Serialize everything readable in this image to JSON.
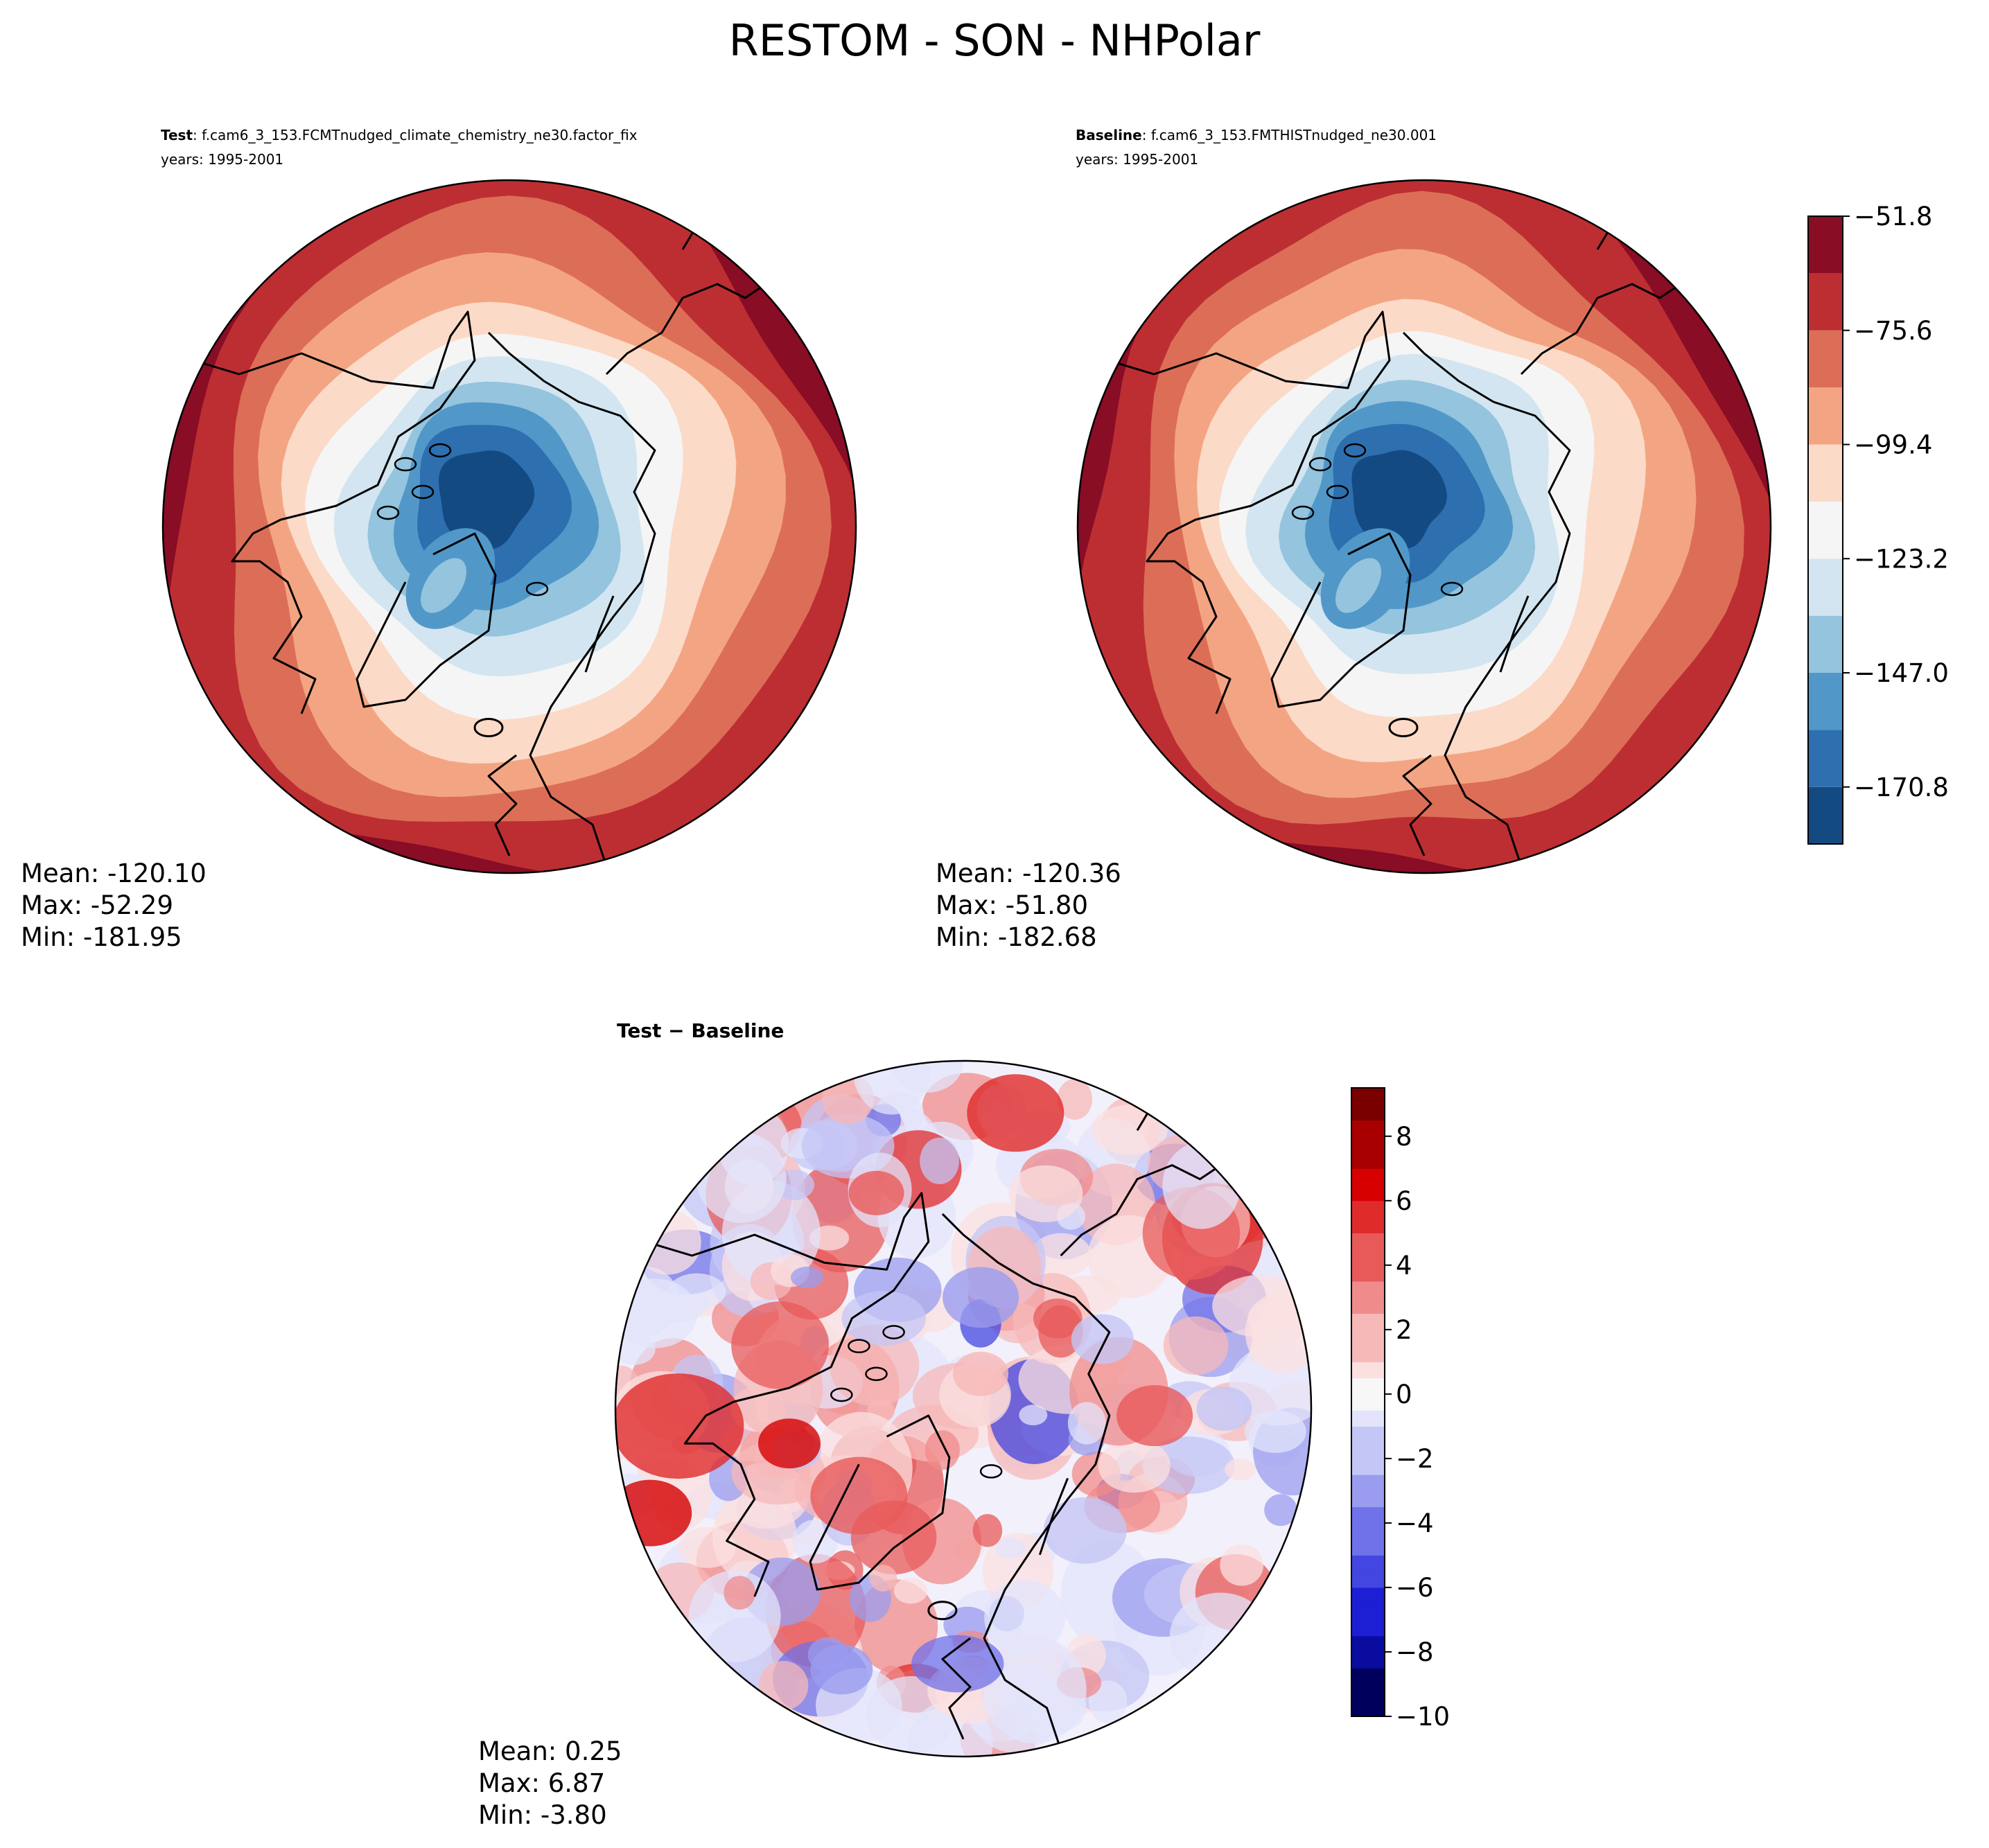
{
  "title": "RESTOM - SON - NHPolar",
  "colors": {
    "levels": [
      "#144a82",
      "#2e6fb0",
      "#5198c8",
      "#94c4de",
      "#d2e5f0",
      "#f5f5f5",
      "#fcdac8",
      "#f3a583",
      "#dc6e57",
      "#bd2e32",
      "#880d25"
    ],
    "diff_pos": [
      "#fbe0e0",
      "#f7b8b8",
      "#f08b8b",
      "#e85a5a",
      "#e02b2b",
      "#d60000",
      "#a80000",
      "#7a0000"
    ],
    "diff_neg": [
      "#e3e4fb",
      "#c4c6f5",
      "#9a9cef",
      "#6f72e8",
      "#4346e0",
      "#1c1fd4",
      "#0a0ca0",
      "#00005c"
    ],
    "coast": "#000000"
  },
  "chart_data": [
    {
      "type": "heatmap",
      "subtitle_bold": "Test",
      "subtitle_rest": ": f.cam6_3_153.FCMTnudged_climate_chemistry_ne30.factor_fix",
      "years": "years: 1995-2001",
      "stats": {
        "mean": "Mean: -120.10",
        "max": "Max: -52.29",
        "min": "Min: -181.95"
      },
      "field_range": [
        -181.95,
        -52.29
      ]
    },
    {
      "type": "heatmap",
      "subtitle_bold": "Baseline",
      "subtitle_rest": ": f.cam6_3_153.FMTHISTnudged_ne30.001",
      "years": "years: 1995-2001",
      "stats": {
        "mean": "Mean: -120.36",
        "max": "Max: -51.80",
        "min": "Min: -182.68"
      },
      "field_range": [
        -182.68,
        -51.8
      ],
      "colorbar": {
        "levels": [
          -182.68,
          -170.8,
          -158.9,
          -147.0,
          -135.1,
          -123.2,
          -111.3,
          -99.4,
          -87.5,
          -75.6,
          -63.7,
          -51.8
        ],
        "ticks": [
          "−51.8",
          "−75.6",
          "−99.4",
          "−123.2",
          "−147.0",
          "−170.8"
        ],
        "tick_values": [
          -51.8,
          -75.6,
          -99.4,
          -123.2,
          -147.0,
          -170.8
        ]
      }
    },
    {
      "type": "heatmap",
      "subtitle_bold": "Test − Baseline",
      "stats": {
        "mean": "Mean:  0.25",
        "max": "Max:  6.87",
        "min": "Min: -3.80"
      },
      "field_range": [
        -3.8,
        6.87
      ],
      "colorbar": {
        "range": [
          -10,
          9.5
        ],
        "ticks": [
          "8",
          "6",
          "4",
          "2",
          "0",
          "−2",
          "−4",
          "−6",
          "−8",
          "−10"
        ],
        "tick_values": [
          8,
          6,
          4,
          2,
          0,
          -2,
          -4,
          -6,
          -8,
          -10
        ]
      }
    }
  ]
}
